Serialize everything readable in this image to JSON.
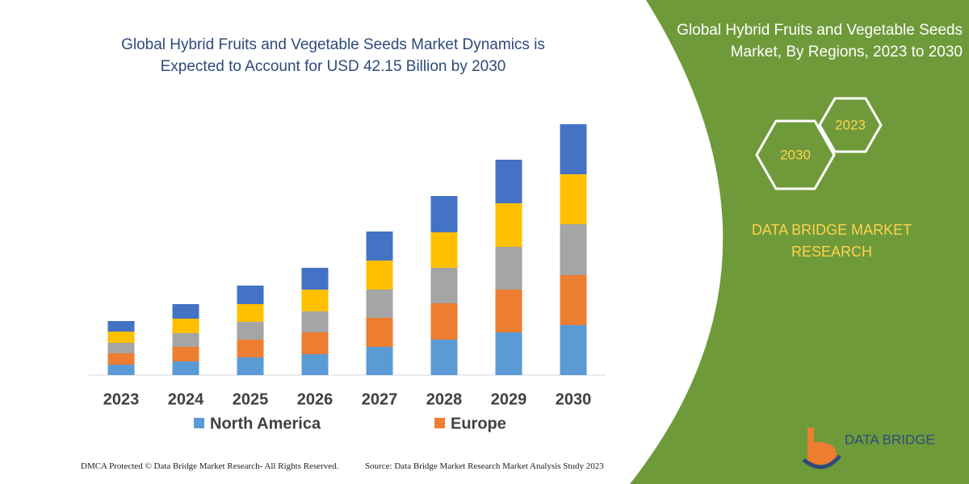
{
  "chart_data": {
    "type": "bar",
    "stacked": true,
    "title": "Global Hybrid Fruits and Vegetable Seeds Market Dynamics is Expected to Account for USD 42.15 Billion by 2030",
    "categories": [
      "2023",
      "2024",
      "2025",
      "2026",
      "2027",
      "2028",
      "2029",
      "2030"
    ],
    "ylim": [
      0,
      320
    ],
    "series": [
      {
        "name": "North America",
        "color": "#5b9bd5",
        "values": [
          13,
          17,
          22,
          26,
          35,
          44,
          53,
          62
        ]
      },
      {
        "name": "Europe",
        "color": "#ed7d31",
        "values": [
          14,
          18,
          22,
          27,
          36,
          45,
          53,
          62
        ]
      },
      {
        "color": "#a5a5a5",
        "values": [
          13,
          17,
          22,
          26,
          35,
          44,
          53,
          63
        ]
      },
      {
        "color": "#ffc000",
        "values": [
          14,
          18,
          22,
          27,
          36,
          44,
          54,
          62
        ]
      },
      {
        "color": "#4472c4",
        "values": [
          13,
          18,
          23,
          27,
          36,
          45,
          54,
          62
        ]
      }
    ]
  },
  "panel": {
    "title": "Global Hybrid Fruits and Vegetable Seeds Market, By Regions, 2023 to 2030",
    "badges": [
      "2023",
      "2030"
    ],
    "brand": "DATA BRIDGE MARKET RESEARCH"
  },
  "logo": "DATA BRIDGE",
  "footer": {
    "notice": "DMCA Protected © Data Bridge Market Research- All Rights Reserved.",
    "source": "Source: Data Bridge Market Research Market Analysis Study 2023"
  }
}
